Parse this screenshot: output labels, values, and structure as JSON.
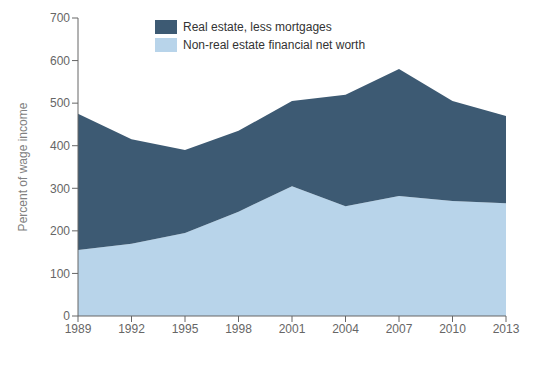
{
  "chart_data": {
    "type": "area",
    "stacked": true,
    "x": [
      1989,
      1992,
      1995,
      1998,
      2001,
      2004,
      2007,
      2010,
      2013
    ],
    "series": [
      {
        "name": "Non-real estate financial net worth",
        "color": "#b8d4ea",
        "values": [
          155,
          170,
          195,
          245,
          305,
          258,
          282,
          270,
          265
        ]
      },
      {
        "name": "Real estate, less mortgages",
        "color": "#3d5a73",
        "values": [
          320,
          245,
          195,
          190,
          200,
          262,
          298,
          235,
          205
        ]
      }
    ],
    "ylabel": "Percent of wage income",
    "xlim": [
      1989,
      2013
    ],
    "xticks": [
      1989,
      1992,
      1995,
      1998,
      2001,
      2004,
      2007,
      2010,
      2013
    ],
    "ylim": [
      0,
      700
    ],
    "yticks": [
      0,
      100,
      200,
      300,
      400,
      500,
      600,
      700
    ],
    "grid": false,
    "legend": "upper left"
  }
}
